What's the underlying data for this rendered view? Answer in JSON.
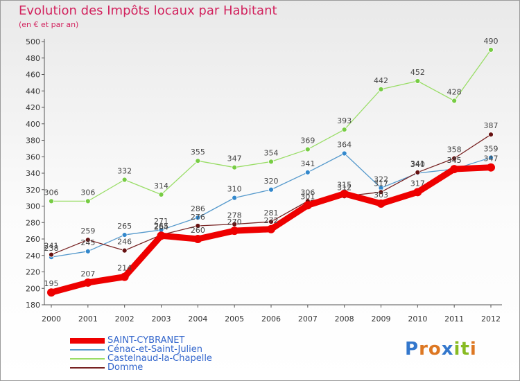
{
  "header": {
    "title": "Evolution des Impôts locaux par Habitant",
    "subtitle": "(en € et par an)"
  },
  "chart_data": {
    "type": "line",
    "categories": [
      "2000",
      "2001",
      "2002",
      "2003",
      "2004",
      "2005",
      "2006",
      "2007",
      "2008",
      "2009",
      "2010",
      "2011",
      "2012"
    ],
    "ylim": [
      180,
      500
    ],
    "yticks": [
      180,
      200,
      220,
      240,
      260,
      280,
      300,
      320,
      340,
      360,
      380,
      400,
      420,
      440,
      460,
      480,
      500
    ],
    "grid": false,
    "series": [
      {
        "name": "SAINT-CYBRANET",
        "color": "#ee0000",
        "values": [
          195,
          207,
          214,
          264,
          260,
          270,
          272,
          301,
          315,
          303,
          317,
          345,
          347
        ]
      },
      {
        "name": "Cénac-et-Saint-Julien",
        "color": "#5599cc",
        "values": [
          238,
          245,
          265,
          271,
          286,
          310,
          320,
          341,
          364,
          322,
          340,
          345,
          359
        ]
      },
      {
        "name": "Castelnaud-la-Chapelle",
        "color": "#99dd66",
        "values": [
          306,
          306,
          332,
          314,
          355,
          347,
          354,
          369,
          393,
          442,
          452,
          428,
          490
        ]
      },
      {
        "name": "Domme",
        "color": "#772222",
        "values": [
          241,
          259,
          246,
          265,
          276,
          278,
          281,
          306,
          312,
          317,
          341,
          358,
          387
        ]
      }
    ]
  },
  "legend": {
    "items": [
      "SAINT-CYBRANET",
      "Cénac-et-Saint-Julien",
      "Castelnaud-la-Chapelle",
      "Domme"
    ]
  },
  "logo": {
    "letters": [
      "P",
      "r",
      "o",
      "x",
      "i",
      "t",
      "i"
    ],
    "colors": [
      "#3377cc",
      "#dd7722",
      "#dd7722",
      "#3377cc",
      "#88bb22",
      "#88bb22",
      "#dd7722"
    ]
  }
}
